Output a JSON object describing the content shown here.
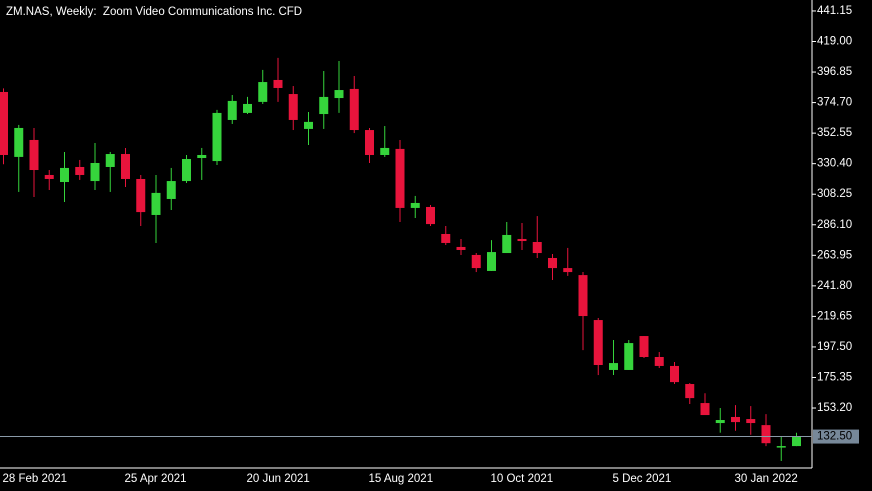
{
  "chart_data": {
    "type": "candlestick",
    "title": "ZM.NAS, Weekly:  Zoom Video Communications Inc. CFD",
    "categories": [
      "28 Feb 2021",
      null,
      null,
      null,
      null,
      null,
      null,
      null,
      "25 Apr 2021",
      null,
      null,
      null,
      null,
      null,
      null,
      null,
      "20 Jun 2021",
      null,
      null,
      null,
      null,
      null,
      null,
      null,
      "15 Aug 2021",
      null,
      null,
      null,
      null,
      null,
      null,
      null,
      "10 Oct 2021",
      null,
      null,
      null,
      null,
      null,
      null,
      null,
      "5 Dec 2021",
      null,
      null,
      null,
      null,
      null,
      null,
      null,
      "30 Jan 2022",
      null,
      null,
      null,
      null
    ],
    "open": [
      382.4,
      335.3,
      347.6,
      322.2,
      317.1,
      328.0,
      317.8,
      328.0,
      337.4,
      319.3,
      293.2,
      304.8,
      317.8,
      334.5,
      332.3,
      362.1,
      367.2,
      375.2,
      391.1,
      380.9,
      355.6,
      366.4,
      378.0,
      384.6,
      354.8,
      336.7,
      341.1,
      298.3,
      299.0,
      279.4,
      270.0,
      264.2,
      252.6,
      265.6,
      275.8,
      273.6,
      262.0,
      254.7,
      249.6,
      217.0,
      180.8,
      180.8,
      205.4,
      190.2,
      183.7,
      170.6,
      156.8,
      142.3,
      146.7,
      145.2,
      140.8,
      124.9,
      125.6
    ],
    "high": [
      385.0,
      358.5,
      356.3,
      325.8,
      338.9,
      333.1,
      345.4,
      338.9,
      341.8,
      322.2,
      322.2,
      327.3,
      336.7,
      341.8,
      369.4,
      380.2,
      378.8,
      398.4,
      407.1,
      386.7,
      367.9,
      397.6,
      404.9,
      394.0,
      356.3,
      357.7,
      347.6,
      307.0,
      300.4,
      285.2,
      275.8,
      265.6,
      275.0,
      288.1,
      287.4,
      292.4,
      264.9,
      269.3,
      251.8,
      218.5,
      202.5,
      202.5,
      205.4,
      193.8,
      186.6,
      171.3,
      163.9,
      153.2,
      155.3,
      154.6,
      148.8,
      132.5,
      135.3
    ],
    "low": [
      330.0,
      309.9,
      306.2,
      311.3,
      302.6,
      318.6,
      311.3,
      309.9,
      313.5,
      285.2,
      272.9,
      296.8,
      316.4,
      318.6,
      329.4,
      359.2,
      366.4,
      373.7,
      375.2,
      354.8,
      343.9,
      355.6,
      367.2,
      352.6,
      330.9,
      335.3,
      288.1,
      291.0,
      285.2,
      271.4,
      264.2,
      251.8,
      252.6,
      265.6,
      267.8,
      262.0,
      246.0,
      249.0,
      195.2,
      177.1,
      177.1,
      180.8,
      189.5,
      182.2,
      170.6,
      156.1,
      148.1,
      135.3,
      136.7,
      133.8,
      125.6,
      114.8,
      125.6
    ],
    "close": [
      336.7,
      356.3,
      325.8,
      319.3,
      327.3,
      322.2,
      330.9,
      337.4,
      319.3,
      295.3,
      309.2,
      317.8,
      333.8,
      336.7,
      367.2,
      375.9,
      373.7,
      389.6,
      385.3,
      362.1,
      360.7,
      378.8,
      383.8,
      354.8,
      336.7,
      341.8,
      298.3,
      301.9,
      286.6,
      272.9,
      267.8,
      254.7,
      266.3,
      278.7,
      274.3,
      265.6,
      254.7,
      251.8,
      219.9,
      184.4,
      185.8,
      200.3,
      190.2,
      183.7,
      172.0,
      160.4,
      148.1,
      144.5,
      143.0,
      142.3,
      127.7,
      125.6,
      132.5
    ],
    "up_color": "#36d43c",
    "down_color": "#e8143c",
    "ylim": [
      109.7,
      449.1
    ],
    "yticks": [
      441.15,
      {
        "value": 419,
        "label": "419.00"
      },
      396.85,
      {
        "value": 374.7,
        "label": "374.70"
      },
      352.55,
      {
        "value": 330.4,
        "label": "330.40"
      },
      308.25,
      {
        "value": 286.1,
        "label": "286.10"
      },
      263.95,
      {
        "value": 241.8,
        "label": "241.80"
      },
      219.65,
      {
        "value": 197.5,
        "label": "197.50"
      },
      175.35,
      {
        "value": 153.2,
        "label": "153.20"
      }
    ],
    "last_price": {
      "value": 132.5,
      "label": "132.50"
    }
  }
}
